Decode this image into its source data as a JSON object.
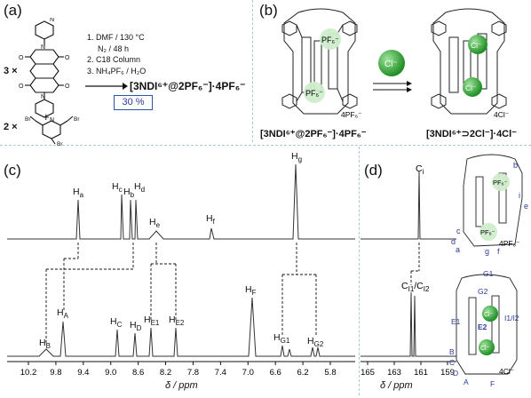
{
  "panels": {
    "a": "(a)",
    "b": "(b)",
    "c": "(c)",
    "d": "(d)"
  },
  "synthesis": {
    "reagent1_mult": "3 ×",
    "reagent2_mult": "2 ×",
    "plus": "+",
    "conditions": [
      "1. DMF / 130 °C",
      "N₂ / 48 h",
      "2. C18 Column",
      "3. NH₄PF₆ / H₂O"
    ],
    "product": "[3NDI⁶⁺@2PF₆⁻]·4PF₆⁻",
    "yield": "30 %",
    "substituents": {
      "br": "Br"
    }
  },
  "assembly": {
    "left_label": "[3NDI⁶⁺@2PF₆⁻]·4PF₆⁻",
    "right_label": "[3NDI⁶⁺⊃2Cl⁻]·4Cl⁻",
    "reagent": "Cl⁻",
    "guest_pf6": "PF₆⁻",
    "guest_cl": "Cl⁻",
    "counter_left": "4PF₆⁻",
    "counter_right": "4Cl⁻"
  },
  "nmr_h": {
    "xaxis_title": "δ / ppm",
    "ticks": [
      "10.2",
      "9.8",
      "9.4",
      "9.0",
      "8.6",
      "8.2",
      "7.8",
      "7.4",
      "7.0",
      "6.6",
      "6.2",
      "5.8"
    ],
    "top_labels": [
      {
        "text": "Ha",
        "main": "H",
        "sub": "a"
      },
      {
        "text": "Hc",
        "main": "H",
        "sub": "c"
      },
      {
        "text": "Hb",
        "main": "H",
        "sub": "b"
      },
      {
        "text": "Hd",
        "main": "H",
        "sub": "d"
      },
      {
        "text": "He",
        "main": "H",
        "sub": "e"
      },
      {
        "text": "Hf",
        "main": "H",
        "sub": "f"
      },
      {
        "text": "Hg",
        "main": "H",
        "sub": "g"
      }
    ],
    "bottom_labels": [
      {
        "text": "HB",
        "main": "H",
        "sub": "B"
      },
      {
        "text": "HA",
        "main": "H",
        "sub": "A"
      },
      {
        "text": "HC",
        "main": "H",
        "sub": "C"
      },
      {
        "text": "HD",
        "main": "H",
        "sub": "D"
      },
      {
        "text": "HE1",
        "main": "H",
        "sub": "E1"
      },
      {
        "text": "HE2",
        "main": "H",
        "sub": "E2"
      },
      {
        "text": "HF",
        "main": "H",
        "sub": "F"
      },
      {
        "text": "HG1",
        "main": "H",
        "sub": "G1"
      },
      {
        "text": "HG2",
        "main": "H",
        "sub": "G2"
      }
    ]
  },
  "nmr_c": {
    "xaxis_title": "δ / ppm",
    "ticks": [
      "165",
      "163",
      "161",
      "159"
    ],
    "top_label": {
      "text": "Ci",
      "main": "C",
      "sub": "i"
    },
    "bottom_label": {
      "text": "CI1/CI2",
      "main": "C",
      "sub": "I1",
      "main2": "/C",
      "sub2": "I2"
    },
    "struct_top_letters": [
      "a",
      "b",
      "c",
      "d",
      "e",
      "f",
      "g",
      "i"
    ],
    "struct_top_counter": "4PF₆⁻",
    "struct_top_guest": "PF₆⁻",
    "struct_bottom_letters": [
      "A",
      "B",
      "C",
      "D",
      "E1",
      "E2",
      "F",
      "G1",
      "G2",
      "I1/I2"
    ],
    "struct_bottom_counter": "4Cl⁻",
    "struct_bottom_guest": "Cl⁻"
  },
  "colors": {
    "accent": "#2a3a9a",
    "guest_green": "#3cb43c",
    "divider": "#a9c9d3"
  }
}
